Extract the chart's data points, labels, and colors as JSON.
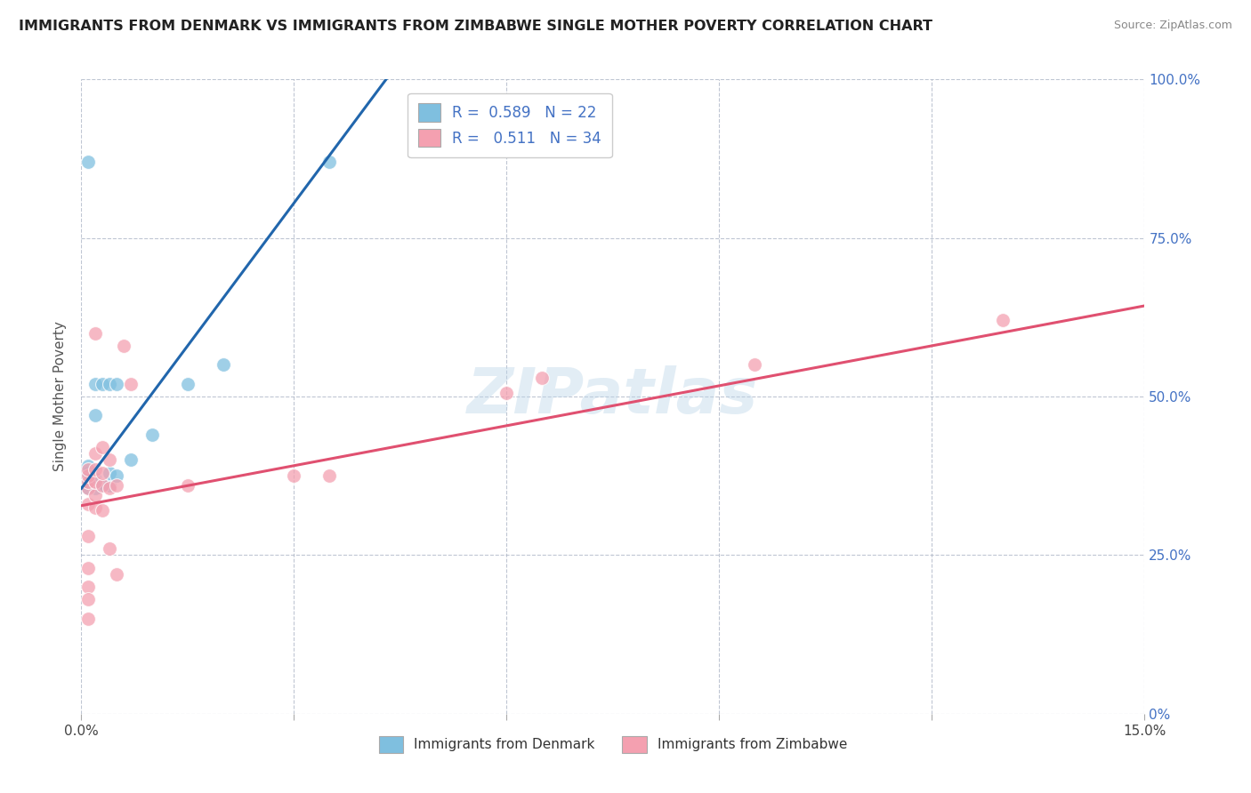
{
  "title": "IMMIGRANTS FROM DENMARK VS IMMIGRANTS FROM ZIMBABWE SINGLE MOTHER POVERTY CORRELATION CHART",
  "source": "Source: ZipAtlas.com",
  "ylabel": "Single Mother Poverty",
  "xmin": 0.0,
  "xmax": 0.15,
  "ymin": 0.0,
  "ymax": 1.0,
  "xtick_pos": [
    0.0,
    0.03,
    0.06,
    0.09,
    0.12,
    0.15
  ],
  "xtick_labels": [
    "0.0%",
    "",
    "",
    "",
    "",
    "15.0%"
  ],
  "ytick_pos": [
    0.0,
    0.25,
    0.5,
    0.75,
    1.0
  ],
  "ytick_labels_right": [
    "0%",
    "25.0%",
    "50.0%",
    "75.0%",
    "100.0%"
  ],
  "color_denmark": "#7fbfdf",
  "color_zimbabwe": "#f4a0b0",
  "line_color_denmark": "#2166ac",
  "line_color_zimbabwe": "#e05070",
  "denmark_R": 0.589,
  "denmark_N": 22,
  "zimbabwe_R": 0.511,
  "zimbabwe_N": 34,
  "denmark_x": [
    0.001,
    0.001,
    0.001,
    0.001,
    0.001,
    0.002,
    0.002,
    0.002,
    0.002,
    0.003,
    0.003,
    0.004,
    0.004,
    0.004,
    0.005,
    0.007,
    0.01,
    0.015,
    0.02,
    0.035,
    0.005,
    0.001
  ],
  "denmark_y": [
    0.355,
    0.365,
    0.375,
    0.38,
    0.39,
    0.355,
    0.37,
    0.47,
    0.52,
    0.36,
    0.52,
    0.36,
    0.38,
    0.52,
    0.375,
    0.4,
    0.44,
    0.52,
    0.55,
    0.87,
    0.52,
    0.87
  ],
  "zimbabwe_x": [
    0.001,
    0.001,
    0.001,
    0.001,
    0.001,
    0.002,
    0.002,
    0.002,
    0.002,
    0.002,
    0.002,
    0.003,
    0.003,
    0.003,
    0.003,
    0.004,
    0.004,
    0.004,
    0.005,
    0.005,
    0.006,
    0.007,
    0.015,
    0.03,
    0.035,
    0.06,
    0.065,
    0.095,
    0.13,
    0.001,
    0.001,
    0.001,
    0.001,
    0.001
  ],
  "zimbabwe_y": [
    0.33,
    0.355,
    0.365,
    0.375,
    0.385,
    0.325,
    0.345,
    0.365,
    0.385,
    0.41,
    0.6,
    0.32,
    0.36,
    0.38,
    0.42,
    0.26,
    0.4,
    0.355,
    0.22,
    0.36,
    0.58,
    0.52,
    0.36,
    0.375,
    0.375,
    0.505,
    0.53,
    0.55,
    0.62,
    0.2,
    0.23,
    0.28,
    0.15,
    0.18
  ],
  "watermark": "ZIPatlas",
  "background_color": "#ffffff",
  "grid_color": "#b0b8c8"
}
